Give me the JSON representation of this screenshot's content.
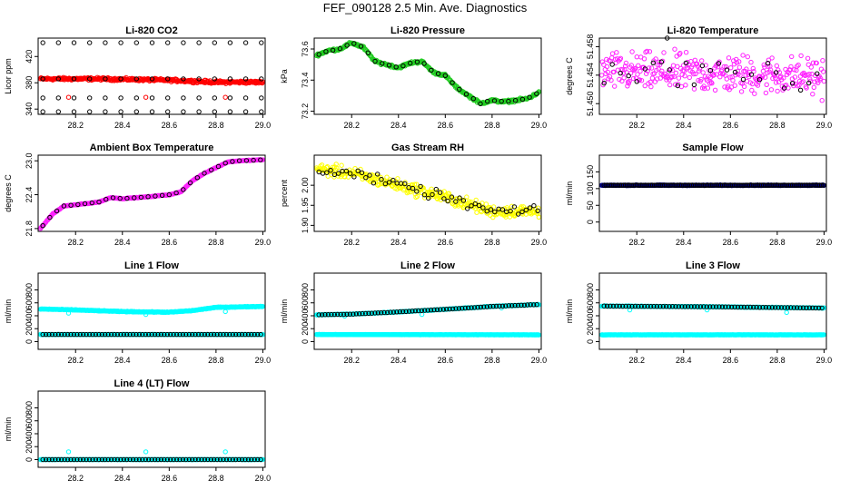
{
  "figure_title": "FEF_090128  2.5 Min. Ave. Diagnostics",
  "colors": {
    "red": "#ff0000",
    "green": "#22cc22",
    "magenta": "#ff22ff",
    "yellow": "#ffff00",
    "navy": "#000088",
    "cyan": "#00ffff",
    "black": "#000000"
  },
  "chart_data": [
    {
      "id": "co2",
      "type": "scatter",
      "title": "Li-820 CO2",
      "ylabel": "Licor ppm",
      "xlim": [
        28.04,
        29.01
      ],
      "ylim": [
        332,
        448
      ],
      "xticks": [
        "28.2",
        "28.4",
        "28.6",
        "28.8",
        "29.0"
      ],
      "yticks": [
        "340",
        "380",
        "420"
      ],
      "series": [
        {
          "name": "primary",
          "color": "red",
          "style": "dense",
          "x": [
            28.05,
            28.3,
            28.6,
            28.8,
            29.0
          ],
          "y": [
            386,
            386,
            384,
            381,
            381
          ],
          "spread": 3,
          "outliers": [
            [
              28.17,
              358
            ],
            [
              28.5,
              358
            ],
            [
              28.84,
              358
            ]
          ]
        },
        {
          "name": "secondary",
          "color": "black",
          "style": "sparse",
          "levels": [
            336,
            357,
            386,
            441
          ],
          "step": 0.0667,
          "x_start": 28.06
        }
      ]
    },
    {
      "id": "pressure",
      "type": "scatter",
      "title": "Li-820 Pressure",
      "ylabel": "kPa",
      "xlim": [
        28.04,
        29.01
      ],
      "ylim": [
        73.18,
        73.67
      ],
      "xticks": [
        "28.2",
        "28.4",
        "28.6",
        "28.8",
        "29.0"
      ],
      "yticks": [
        "73.2",
        "73.4",
        "73.6"
      ],
      "series": [
        {
          "name": "primary",
          "color": "green",
          "style": "dense",
          "x": [
            28.05,
            28.1,
            28.15,
            28.2,
            28.25,
            28.3,
            28.35,
            28.4,
            28.45,
            28.5,
            28.55,
            28.6,
            28.65,
            28.7,
            28.75,
            28.8,
            28.85,
            28.9,
            28.95,
            29.0
          ],
          "y": [
            73.56,
            73.59,
            73.6,
            73.64,
            73.61,
            73.52,
            73.5,
            73.48,
            73.51,
            73.52,
            73.45,
            73.43,
            73.35,
            73.3,
            73.25,
            73.27,
            73.26,
            73.27,
            73.28,
            73.32
          ],
          "spread": 0.012
        },
        {
          "name": "secondary",
          "color": "black",
          "style": "sparse_follow",
          "step": 0.03,
          "x_start": 28.06
        }
      ]
    },
    {
      "id": "temperature",
      "type": "scatter",
      "title": "Li-820 Temperature",
      "ylabel": "degrees C",
      "xlim": [
        28.04,
        29.01
      ],
      "ylim": [
        51.4485,
        51.4592
      ],
      "xticks": [
        "28.2",
        "28.4",
        "28.6",
        "28.8",
        "29.0"
      ],
      "yticks": [
        "51.450",
        "51.454",
        "51.458"
      ],
      "series": [
        {
          "name": "primary",
          "color": "magenta",
          "style": "noisy",
          "x": [
            28.05,
            28.5,
            29.0
          ],
          "y": [
            51.4545,
            51.4542,
            51.4538
          ],
          "spread": 0.004
        },
        {
          "name": "secondary",
          "color": "black",
          "style": "sparse_noisy",
          "step": 0.035,
          "x_start": 28.06,
          "outliers": [
            [
              28.33,
              51.4592
            ]
          ]
        }
      ]
    },
    {
      "id": "box_temp",
      "type": "scatter",
      "title": "Ambient Box Temperature",
      "ylabel": "degrees C",
      "xlim": [
        28.04,
        29.01
      ],
      "ylim": [
        21.75,
        23.1
      ],
      "xticks": [
        "28.2",
        "28.4",
        "28.6",
        "28.8",
        "29.0"
      ],
      "yticks": [
        "21.8",
        "22.4",
        "23.0"
      ],
      "series": [
        {
          "name": "primary",
          "color": "magenta",
          "style": "dense",
          "x": [
            28.05,
            28.1,
            28.15,
            28.2,
            28.3,
            28.35,
            28.4,
            28.5,
            28.6,
            28.65,
            28.7,
            28.75,
            28.8,
            28.85,
            28.9,
            29.0
          ],
          "y": [
            21.8,
            22.05,
            22.2,
            22.22,
            22.27,
            22.35,
            22.33,
            22.36,
            22.4,
            22.45,
            22.65,
            22.78,
            22.88,
            22.98,
            23.0,
            23.02
          ],
          "spread": 0.01
        },
        {
          "name": "secondary",
          "color": "black",
          "style": "sparse_follow",
          "step": 0.03,
          "x_start": 28.06
        }
      ]
    },
    {
      "id": "rh",
      "type": "scatter",
      "title": "Gas Stream RH",
      "ylabel": "percent",
      "xlim": [
        28.04,
        29.01
      ],
      "ylim": [
        1.885,
        2.075
      ],
      "xticks": [
        "28.2",
        "28.4",
        "28.6",
        "28.8",
        "29.0"
      ],
      "yticks": [
        "1.90",
        "1.95",
        "2.00"
      ],
      "series": [
        {
          "name": "primary",
          "color": "yellow",
          "style": "noisy",
          "x": [
            28.05,
            28.2,
            28.4,
            28.6,
            28.8,
            29.0
          ],
          "y": [
            2.04,
            2.03,
            2.0,
            1.97,
            1.935,
            1.935
          ],
          "spread": 0.022
        },
        {
          "name": "secondary",
          "color": "black",
          "style": "sparse_noisy",
          "step": 0.0167,
          "x_start": 28.06
        }
      ]
    },
    {
      "id": "sample_flow",
      "type": "scatter",
      "title": "Sample Flow",
      "ylabel": "ml/min",
      "xlim": [
        28.04,
        29.01
      ],
      "ylim": [
        -28,
        200
      ],
      "xticks": [
        "28.2",
        "28.4",
        "28.6",
        "28.8",
        "29.0"
      ],
      "yticks": [
        "0",
        "50",
        "100",
        "150"
      ],
      "series": [
        {
          "name": "primary",
          "color": "navy",
          "style": "dense",
          "x": [
            28.05,
            29.0
          ],
          "y": [
            110,
            110
          ],
          "spread": 1.5
        },
        {
          "name": "secondary",
          "color": "black",
          "style": "sparse_follow",
          "step": 0.0083,
          "x_start": 28.06
        }
      ]
    },
    {
      "id": "line1",
      "type": "scatter",
      "title": "Line 1 Flow",
      "ylabel": "ml/min",
      "xlim": [
        28.04,
        29.01
      ],
      "ylim": [
        -120,
        1060
      ],
      "xticks": [
        "28.2",
        "28.4",
        "28.6",
        "28.8",
        "29.0"
      ],
      "yticks": [
        "0",
        "200",
        "400",
        "600",
        "800"
      ],
      "series": [
        {
          "name": "primary",
          "color": "cyan",
          "style": "dense",
          "x": [
            28.05,
            28.2,
            28.4,
            28.6,
            28.7,
            28.8,
            29.0
          ],
          "y": [
            505,
            490,
            465,
            455,
            480,
            530,
            545
          ],
          "spread": 8,
          "outliers": [
            [
              28.17,
              440
            ],
            [
              28.5,
              420
            ],
            [
              28.84,
              465
            ]
          ]
        },
        {
          "name": "baseline",
          "color": "cyan",
          "style": "dense",
          "x": [
            28.05,
            29.0
          ],
          "y": [
            110,
            110
          ],
          "spread": 3
        },
        {
          "name": "secondary",
          "color": "black",
          "style": "sparse_follow_baseline",
          "step": 0.0133,
          "x_start": 28.06
        }
      ]
    },
    {
      "id": "line2",
      "type": "scatter",
      "title": "Line 2 Flow",
      "ylabel": "ml/min",
      "xlim": [
        28.04,
        29.01
      ],
      "ylim": [
        -120,
        1060
      ],
      "xticks": [
        "28.2",
        "28.4",
        "28.6",
        "28.8",
        "29.0"
      ],
      "yticks": [
        "0",
        "200",
        "400",
        "600",
        "800"
      ],
      "series": [
        {
          "name": "primary",
          "color": "cyan",
          "style": "dense",
          "x": [
            28.05,
            28.2,
            28.4,
            28.6,
            28.8,
            29.0
          ],
          "y": [
            415,
            425,
            460,
            500,
            545,
            575
          ],
          "spread": 8,
          "outliers": [
            [
              28.17,
              395
            ],
            [
              28.5,
              420
            ],
            [
              28.84,
              520
            ]
          ]
        },
        {
          "name": "baseline",
          "color": "cyan",
          "style": "dense",
          "x": [
            28.05,
            29.0
          ],
          "y": [
            110,
            105
          ],
          "spread": 3
        },
        {
          "name": "secondary",
          "color": "black",
          "style": "sparse_follow",
          "step": 0.0133,
          "x_start": 28.06
        }
      ]
    },
    {
      "id": "line3",
      "type": "scatter",
      "title": "Line 3 Flow",
      "ylabel": "ml/min",
      "xlim": [
        28.04,
        29.01
      ],
      "ylim": [
        -120,
        1060
      ],
      "xticks": [
        "28.2",
        "28.4",
        "28.6",
        "28.8",
        "29.0"
      ],
      "yticks": [
        "0",
        "200",
        "400",
        "600",
        "800"
      ],
      "series": [
        {
          "name": "primary",
          "color": "cyan",
          "style": "dense",
          "x": [
            28.05,
            28.5,
            29.0
          ],
          "y": [
            550,
            540,
            520
          ],
          "spread": 6,
          "outliers": [
            [
              28.17,
              490
            ],
            [
              28.5,
              490
            ],
            [
              28.84,
              450
            ]
          ]
        },
        {
          "name": "baseline",
          "color": "cyan",
          "style": "dense",
          "x": [
            28.05,
            29.0
          ],
          "y": [
            105,
            105
          ],
          "spread": 3
        },
        {
          "name": "secondary",
          "color": "black",
          "style": "sparse_follow",
          "step": 0.0133,
          "x_start": 28.06
        }
      ]
    },
    {
      "id": "line4",
      "type": "scatter",
      "title": "Line 4 (LT) Flow",
      "ylabel": "ml/min",
      "xlim": [
        28.04,
        29.01
      ],
      "ylim": [
        -120,
        1060
      ],
      "xticks": [
        "28.2",
        "28.4",
        "28.6",
        "28.8",
        "29.0"
      ],
      "yticks": [
        "0",
        "200",
        "400",
        "600",
        "800"
      ],
      "series": [
        {
          "name": "primary",
          "color": "cyan",
          "style": "dense",
          "x": [
            28.05,
            29.0
          ],
          "y": [
            0,
            0
          ],
          "spread": 2,
          "outliers": [
            [
              28.17,
              120
            ],
            [
              28.5,
              120
            ],
            [
              28.84,
              120
            ]
          ]
        },
        {
          "name": "secondary",
          "color": "black",
          "style": "sparse_follow",
          "step": 0.0133,
          "x_start": 28.06
        }
      ]
    }
  ]
}
